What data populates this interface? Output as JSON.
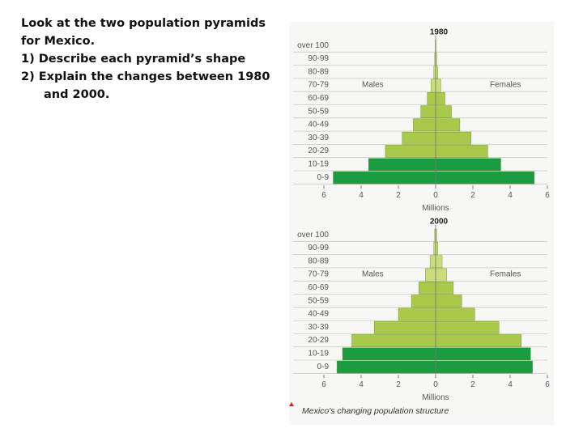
{
  "text": {
    "lines": [
      "Look at the two population pyramids for Mexico.",
      "1) Describe each pyramid’s shape",
      "2) Explain the changes between 1980 and 2000."
    ],
    "caption": "Mexico's changing population structure"
  },
  "chart_data": [
    {
      "type": "pyramid",
      "title": "1980",
      "categories": [
        "over 100",
        "90-99",
        "80-89",
        "70-79",
        "60-69",
        "50-59",
        "40-49",
        "30-39",
        "20-29",
        "10-19",
        "0-9"
      ],
      "series": [
        {
          "name": "Males",
          "values": [
            0.02,
            0.05,
            0.1,
            0.25,
            0.45,
            0.8,
            1.2,
            1.8,
            2.7,
            3.6,
            5.5
          ]
        },
        {
          "name": "Females",
          "values": [
            0.02,
            0.05,
            0.12,
            0.28,
            0.5,
            0.85,
            1.3,
            1.9,
            2.8,
            3.5,
            5.3
          ]
        }
      ],
      "colors": [
        "#c9de7a",
        "#c9de7a",
        "#c9de7a",
        "#c9de7a",
        "#a9c94a",
        "#a9c94a",
        "#a9c94a",
        "#a9c94a",
        "#a9c94a",
        "#1a9c40",
        "#1a9c40"
      ],
      "xlabel": "Millions",
      "xlim": [
        -6,
        6
      ],
      "xticks": [
        {
          "value": -6,
          "label": "6"
        },
        {
          "value": -4,
          "label": "4"
        },
        {
          "value": -2,
          "label": "2"
        },
        0,
        2,
        4,
        6
      ]
    },
    {
      "type": "pyramid",
      "title": "2000",
      "categories": [
        "over 100",
        "90-99",
        "80-89",
        "70-79",
        "60-69",
        "50-59",
        "40-49",
        "30-39",
        "20-29",
        "10-19",
        "0-9"
      ],
      "series": [
        {
          "name": "Males",
          "values": [
            0.05,
            0.1,
            0.3,
            0.55,
            0.9,
            1.3,
            2.0,
            3.3,
            4.5,
            5.0,
            5.3
          ]
        },
        {
          "name": "Females",
          "values": [
            0.05,
            0.12,
            0.35,
            0.6,
            0.95,
            1.4,
            2.1,
            3.4,
            4.6,
            5.1,
            5.2
          ]
        }
      ],
      "colors": [
        "#c9de7a",
        "#c9de7a",
        "#c9de7a",
        "#c9de7a",
        "#a9c94a",
        "#a9c94a",
        "#a9c94a",
        "#a9c94a",
        "#a9c94a",
        "#1a9c40",
        "#1a9c40"
      ],
      "xlabel": "Millions",
      "xlim": [
        -6,
        6
      ],
      "xticks": [
        {
          "value": -6,
          "label": "6"
        },
        {
          "value": -4,
          "label": "4"
        },
        {
          "value": -2,
          "label": "2"
        },
        0,
        2,
        4,
        6
      ]
    }
  ]
}
